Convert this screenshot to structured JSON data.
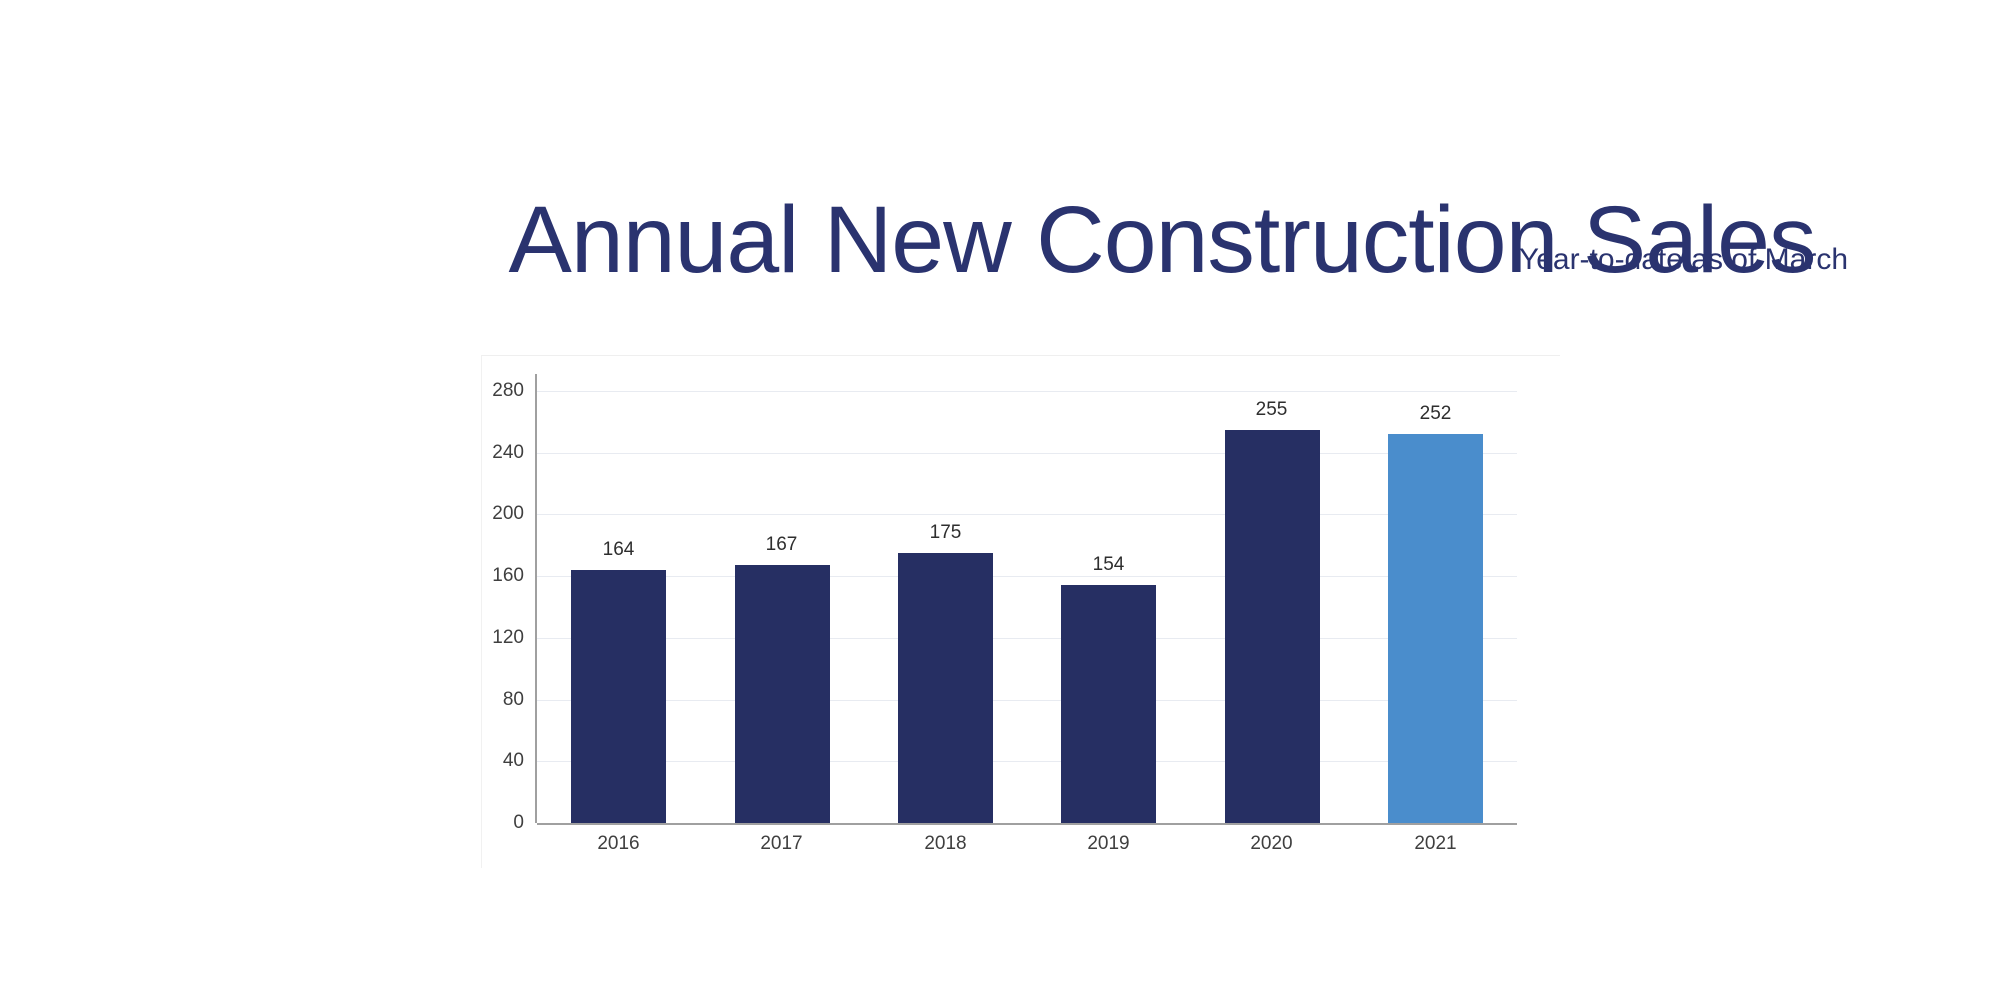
{
  "header": {
    "title": "Annual New Construction Sales",
    "subtitle": "Year-to-date as of March"
  },
  "colors": {
    "title_text": "#2a336f",
    "bar_default": "#262f63",
    "bar_highlight": "#4a8dcc",
    "gridline": "#e8ebf1",
    "axis_line": "#a0a0a0",
    "tick_text": "#3f3f3f",
    "value_label_text": "#2e2e2e"
  },
  "chart_data": {
    "type": "bar",
    "title": "Annual New Construction Sales",
    "subtitle": "Year-to-date as of March",
    "categories": [
      "2016",
      "2017",
      "2018",
      "2019",
      "2020",
      "2021"
    ],
    "values": [
      164,
      167,
      175,
      154,
      255,
      252
    ],
    "value_labels_shown": true,
    "xlabel": "",
    "ylabel": "",
    "ylim": [
      0,
      280
    ],
    "yticks": [
      0,
      40,
      80,
      120,
      160,
      200,
      240,
      280
    ],
    "grid": "horizontal",
    "legend": "none",
    "bar_color_default": "#262f63",
    "bar_color_highlight": "#4a8dcc",
    "highlight_index": 5
  }
}
